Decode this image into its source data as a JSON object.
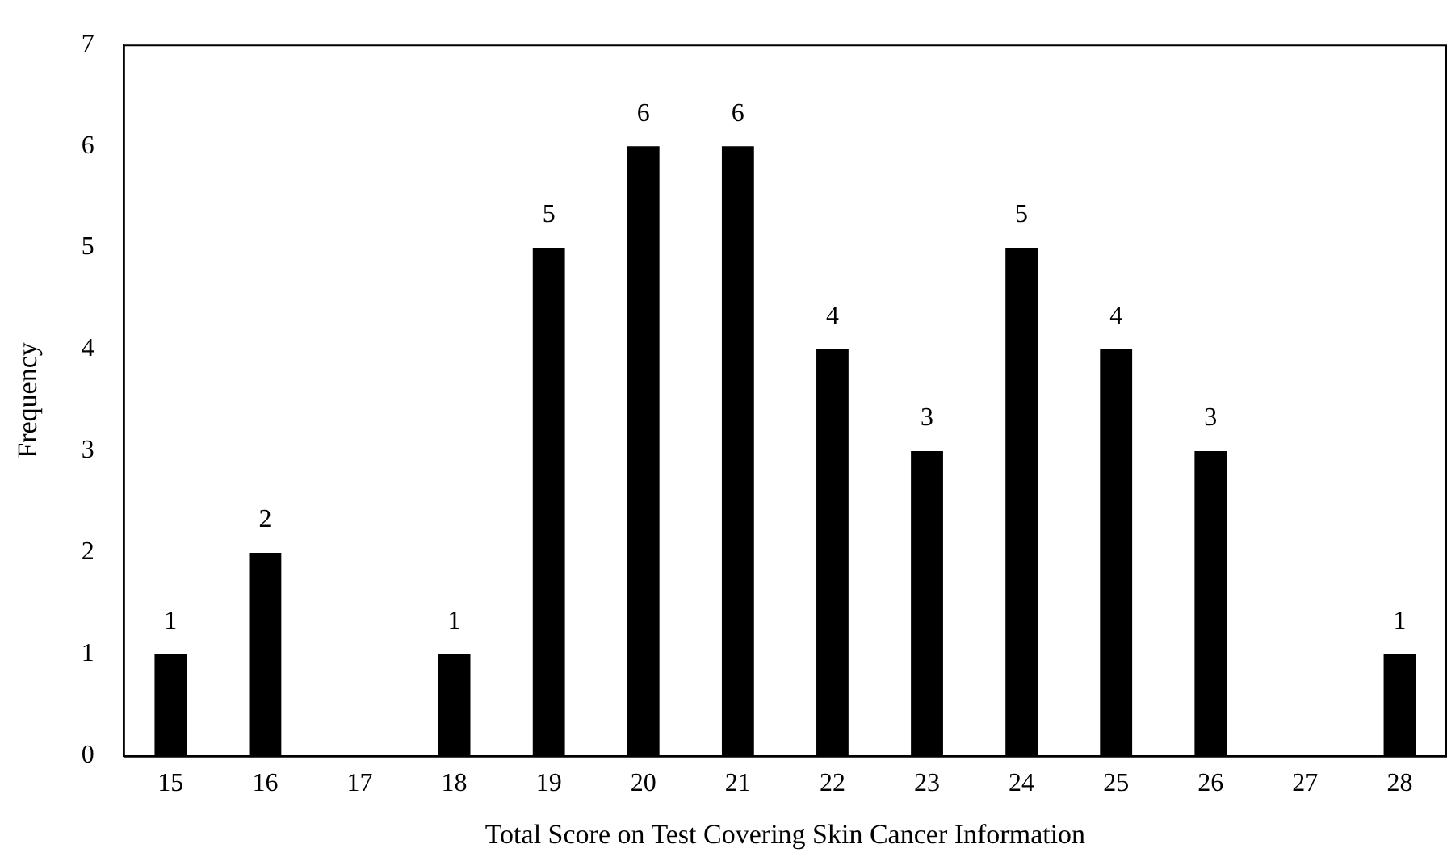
{
  "chart_data": {
    "type": "bar",
    "xlabel": "Total Score on Test Covering Skin Cancer Information",
    "ylabel": "Frequency",
    "categories": [
      "15",
      "16",
      "17",
      "18",
      "19",
      "20",
      "21",
      "22",
      "23",
      "24",
      "25",
      "26",
      "27",
      "28"
    ],
    "values": [
      1,
      2,
      0,
      1,
      5,
      6,
      6,
      4,
      3,
      5,
      4,
      3,
      0,
      1
    ],
    "value_labels": [
      "1",
      "2",
      null,
      "1",
      "5",
      "6",
      "6",
      "4",
      "3",
      "5",
      "4",
      "3",
      null,
      "1"
    ],
    "color": "#000000",
    "ylim": [
      0,
      7
    ],
    "yticks": [
      0,
      1,
      2,
      3,
      4,
      5,
      6,
      7
    ],
    "grid": false,
    "legend": false
  }
}
